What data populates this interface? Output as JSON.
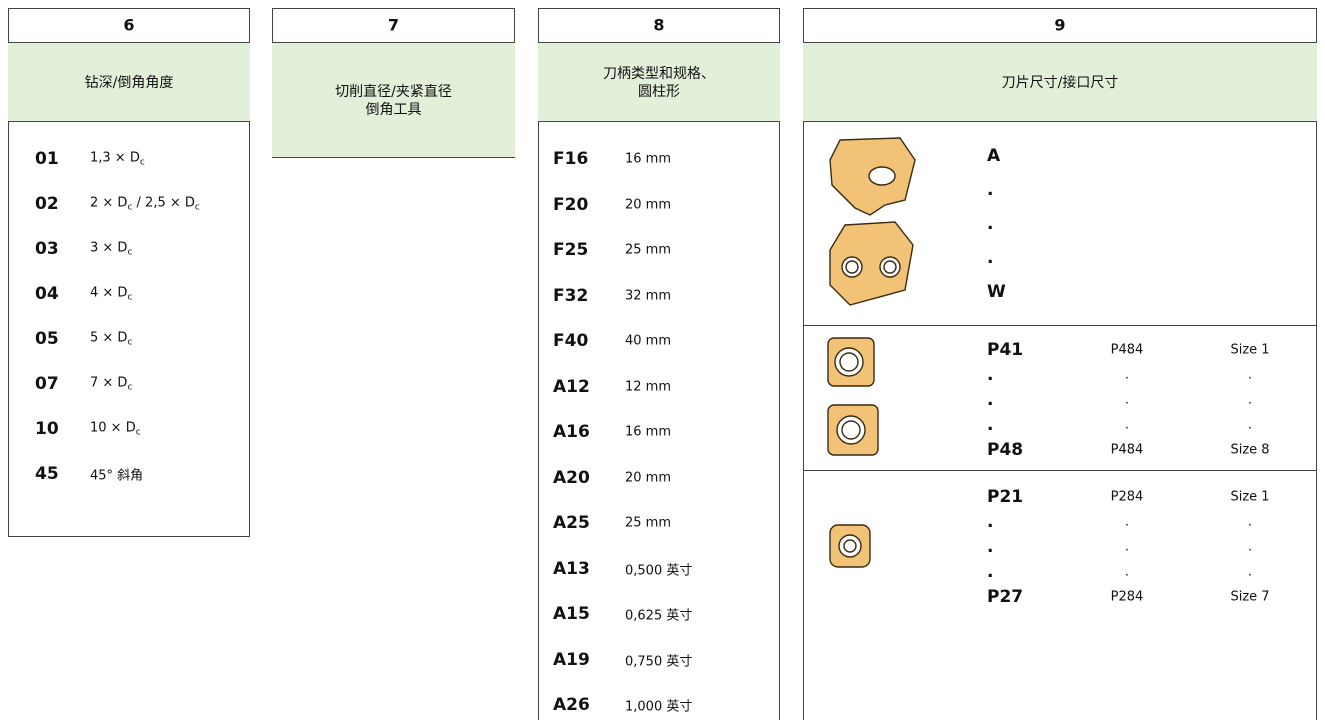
{
  "columns": [
    {
      "number": "6",
      "title": [
        "钻深/倒角角度"
      ],
      "rows": [
        {
          "code": "01",
          "desc": [
            "1,3 × D",
            "c"
          ]
        },
        {
          "code": "02",
          "desc": [
            "2 × D",
            "c",
            " / 2,5 × D",
            "c"
          ]
        },
        {
          "code": "03",
          "desc": [
            "3 × D",
            "c"
          ]
        },
        {
          "code": "04",
          "desc": [
            "4 × D",
            "c"
          ]
        },
        {
          "code": "05",
          "desc": [
            "5 × D",
            "c"
          ]
        },
        {
          "code": "07",
          "desc": [
            "7 × D",
            "c"
          ]
        },
        {
          "code": "10",
          "desc": [
            "10 × D",
            "c"
          ]
        },
        {
          "code": "45",
          "desc": [
            "45° 斜角"
          ]
        }
      ]
    },
    {
      "number": "7",
      "title": [
        "切削直径/夹紧直径",
        "倒角工具"
      ],
      "rows": []
    },
    {
      "number": "8",
      "title": [
        "刀柄类型和规格、",
        "圆柱形"
      ],
      "rows": [
        {
          "code": "F16",
          "desc": [
            "16 mm"
          ]
        },
        {
          "code": "F20",
          "desc": [
            "20 mm"
          ]
        },
        {
          "code": "F25",
          "desc": [
            "25 mm"
          ]
        },
        {
          "code": "F32",
          "desc": [
            "32 mm"
          ]
        },
        {
          "code": "F40",
          "desc": [
            "40 mm"
          ]
        },
        {
          "code": "A12",
          "desc": [
            "12 mm"
          ]
        },
        {
          "code": "A16",
          "desc": [
            "16 mm"
          ]
        },
        {
          "code": "A20",
          "desc": [
            "20 mm"
          ]
        },
        {
          "code": "A25",
          "desc": [
            "25 mm"
          ]
        },
        {
          "code": "A13",
          "desc": [
            "0,500 英寸"
          ]
        },
        {
          "code": "A15",
          "desc": [
            "0,625 英寸"
          ]
        },
        {
          "code": "A19",
          "desc": [
            "0,750 英寸"
          ]
        },
        {
          "code": "A26",
          "desc": [
            "1,000 英寸"
          ]
        }
      ]
    },
    {
      "number": "9",
      "title": [
        "刀片尺寸/接口尺寸"
      ],
      "sections": [
        {
          "rows": [
            [
              "A"
            ],
            [
              "."
            ],
            [
              "."
            ],
            [
              "."
            ],
            [
              "W"
            ]
          ]
        },
        {
          "rows": [
            [
              "P41",
              "P484",
              "Size 1"
            ],
            [
              ".",
              ".",
              "."
            ],
            [
              ".",
              ".",
              "."
            ],
            [
              ".",
              ".",
              "."
            ],
            [
              "P48",
              "P484",
              "Size 8"
            ]
          ]
        },
        {
          "rows": [
            [
              "P21",
              "P284",
              "Size 1"
            ],
            [
              ".",
              ".",
              "."
            ],
            [
              ".",
              ".",
              "."
            ],
            [
              ".",
              ".",
              "."
            ],
            [
              "P27",
              "P284",
              "Size 7"
            ]
          ]
        }
      ]
    }
  ]
}
